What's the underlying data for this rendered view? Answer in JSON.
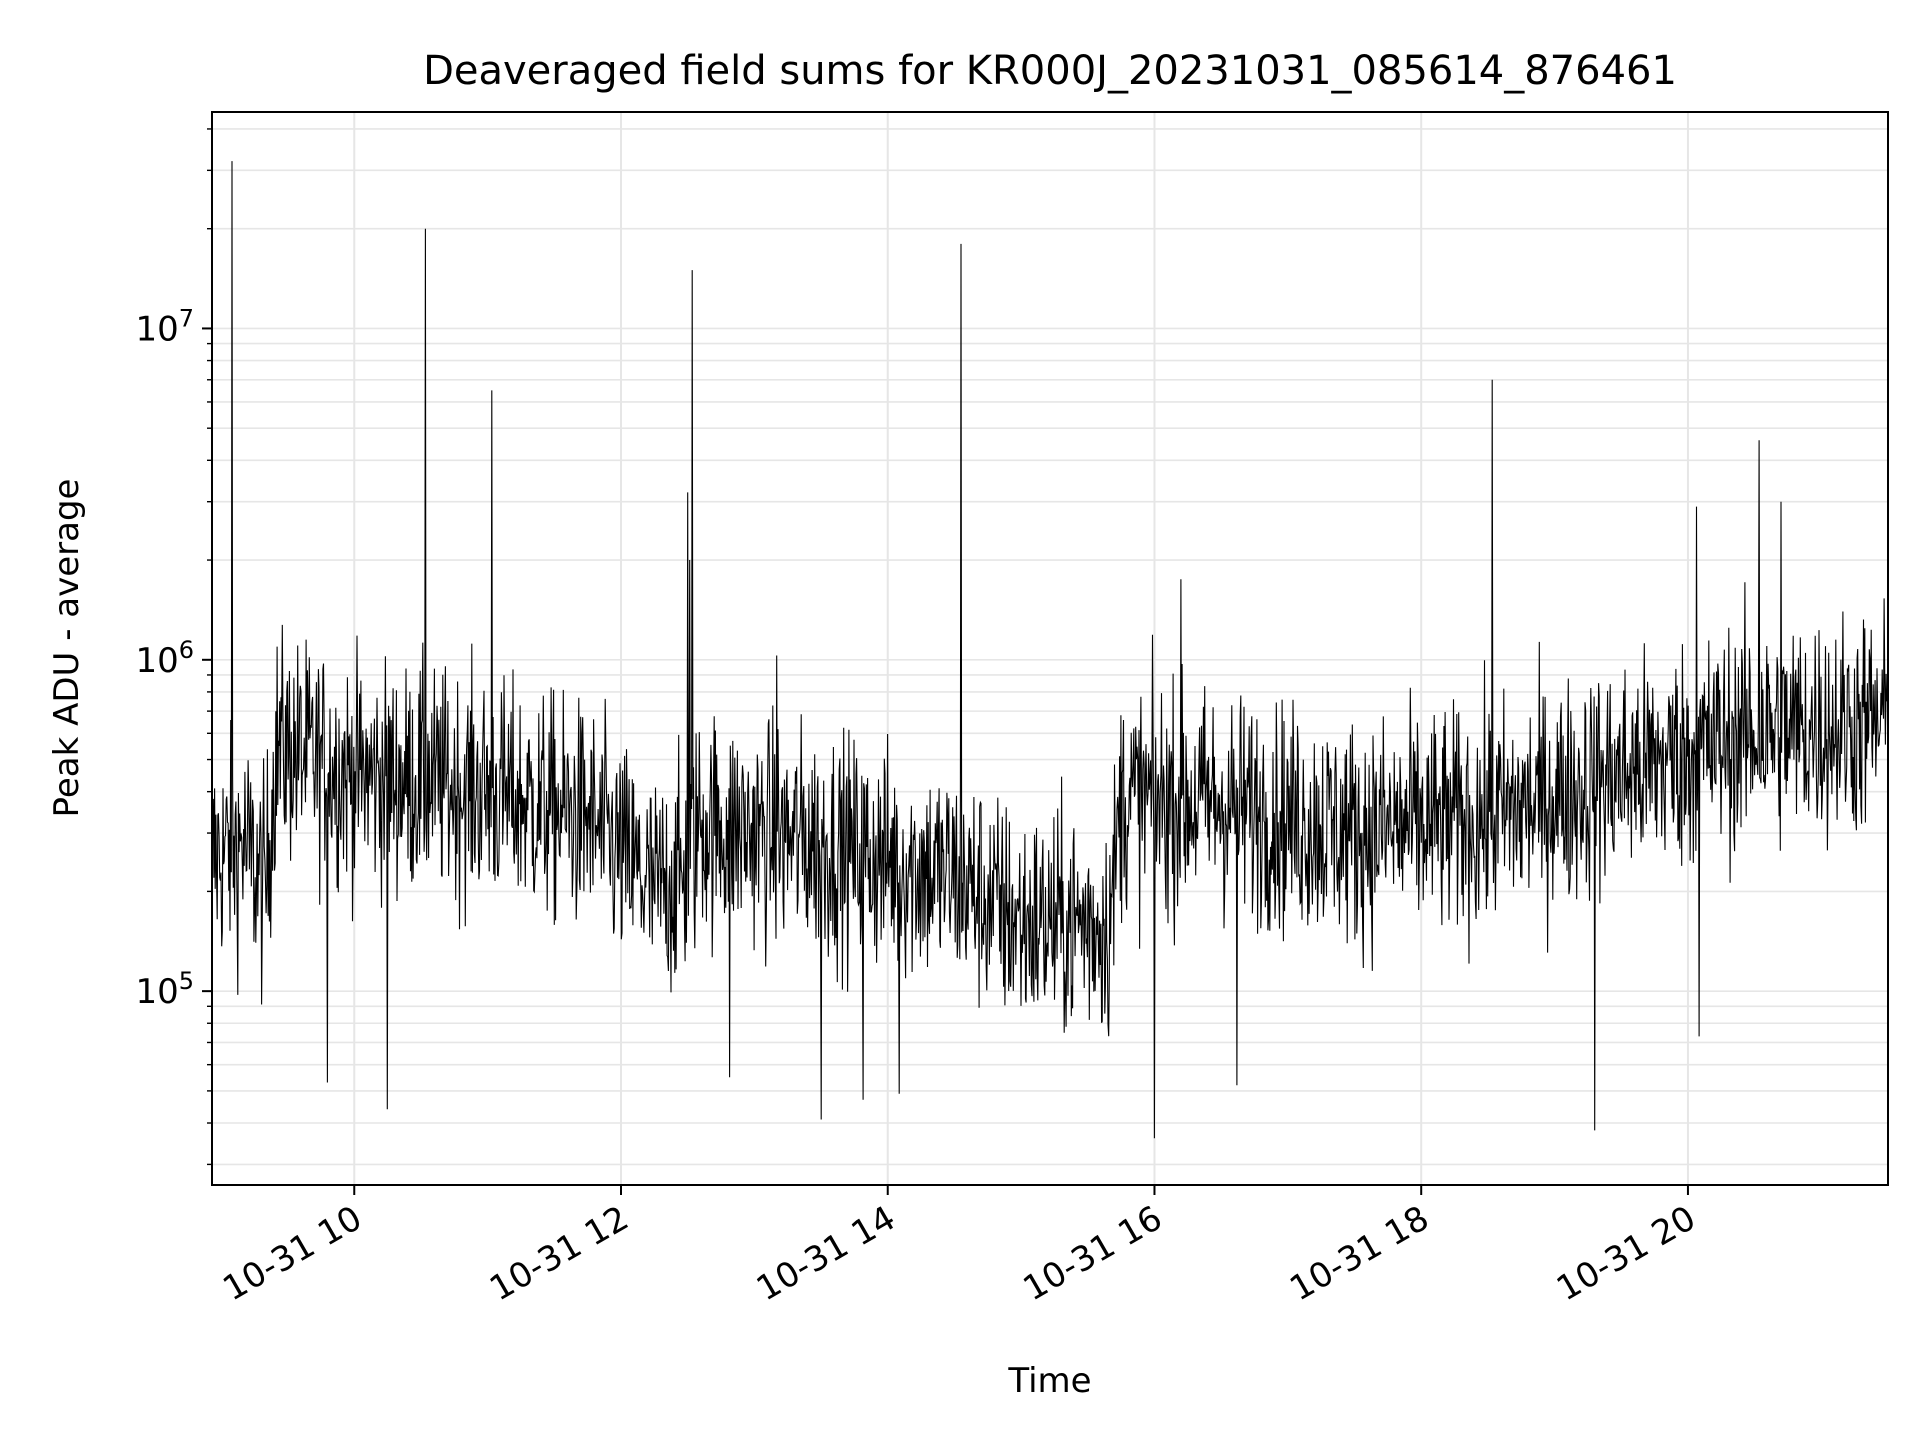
{
  "chart_data": {
    "type": "line",
    "title": "Deaveraged field sums for KR000J_20231031_085614_876461",
    "xlabel": "Time",
    "ylabel": "Peak ADU - average",
    "yscale": "log",
    "ylim": [
      26000,
      45000000
    ],
    "xlim": [
      "2023-10-31 08:56",
      "2023-10-31 21:30"
    ],
    "grid": true,
    "line_color": "#000000",
    "grid_color": "#e6e6e6",
    "x_ticks": [
      {
        "t": "2023-10-31 10:00",
        "label": "10-31 10"
      },
      {
        "t": "2023-10-31 12:00",
        "label": "10-31 12"
      },
      {
        "t": "2023-10-31 14:00",
        "label": "10-31 14"
      },
      {
        "t": "2023-10-31 16:00",
        "label": "10-31 16"
      },
      {
        "t": "2023-10-31 18:00",
        "label": "10-31 18"
      },
      {
        "t": "2023-10-31 20:00",
        "label": "10-31 20"
      }
    ],
    "y_ticks": [
      {
        "value": 100000,
        "base": "10",
        "exp": "5"
      },
      {
        "value": 1000000,
        "base": "10",
        "exp": "6"
      },
      {
        "value": 10000000,
        "base": "10",
        "exp": "7"
      }
    ],
    "series": [
      {
        "baseline": [
          [
            "2023-10-31 08:56",
            250000
          ],
          [
            "2023-10-31 09:10",
            280000
          ],
          [
            "2023-10-31 09:20",
            200000
          ],
          [
            "2023-10-31 09:25",
            550000
          ],
          [
            "2023-10-31 10:00",
            450000
          ],
          [
            "2023-10-31 10:30",
            430000
          ],
          [
            "2023-10-31 11:00",
            400000
          ],
          [
            "2023-10-31 11:45",
            330000
          ],
          [
            "2023-10-31 12:15",
            200000
          ],
          [
            "2023-10-31 12:30",
            230000
          ],
          [
            "2023-10-31 12:35",
            320000
          ],
          [
            "2023-10-31 13:30",
            280000
          ],
          [
            "2023-10-31 14:30",
            220000
          ],
          [
            "2023-10-31 15:00",
            160000
          ],
          [
            "2023-10-31 15:40",
            160000
          ],
          [
            "2023-10-31 15:45",
            380000
          ],
          [
            "2023-10-31 16:30",
            370000
          ],
          [
            "2023-10-31 17:30",
            300000
          ],
          [
            "2023-10-31 18:30",
            330000
          ],
          [
            "2023-10-31 19:30",
            450000
          ],
          [
            "2023-10-31 20:30",
            600000
          ],
          [
            "2023-10-31 21:30",
            650000
          ]
        ],
        "spikes": [
          [
            "2023-10-31 09:05",
            32000000
          ],
          [
            "2023-10-31 10:32",
            20000000
          ],
          [
            "2023-10-31 11:02",
            6500000
          ],
          [
            "2023-10-31 12:30",
            3200000
          ],
          [
            "2023-10-31 12:31",
            2000000
          ],
          [
            "2023-10-31 12:32",
            15000000
          ],
          [
            "2023-10-31 13:10",
            1030000
          ],
          [
            "2023-10-31 14:33",
            18000000
          ],
          [
            "2023-10-31 16:12",
            1750000
          ],
          [
            "2023-10-31 18:32",
            7000000
          ],
          [
            "2023-10-31 20:04",
            2900000
          ],
          [
            "2023-10-31 20:32",
            4600000
          ],
          [
            "2023-10-31 20:42",
            3000000
          ]
        ],
        "dips": [
          [
            "2023-10-31 09:48",
            53000
          ],
          [
            "2023-10-31 10:15",
            44000
          ],
          [
            "2023-10-31 12:49",
            55000
          ],
          [
            "2023-10-31 13:30",
            41000
          ],
          [
            "2023-10-31 13:49",
            47000
          ],
          [
            "2023-10-31 14:05",
            49000
          ],
          [
            "2023-10-31 16:00",
            36000
          ],
          [
            "2023-10-31 16:37",
            52000
          ],
          [
            "2023-10-31 19:18",
            38000
          ],
          [
            "2023-10-31 20:05",
            73000
          ]
        ]
      }
    ]
  }
}
